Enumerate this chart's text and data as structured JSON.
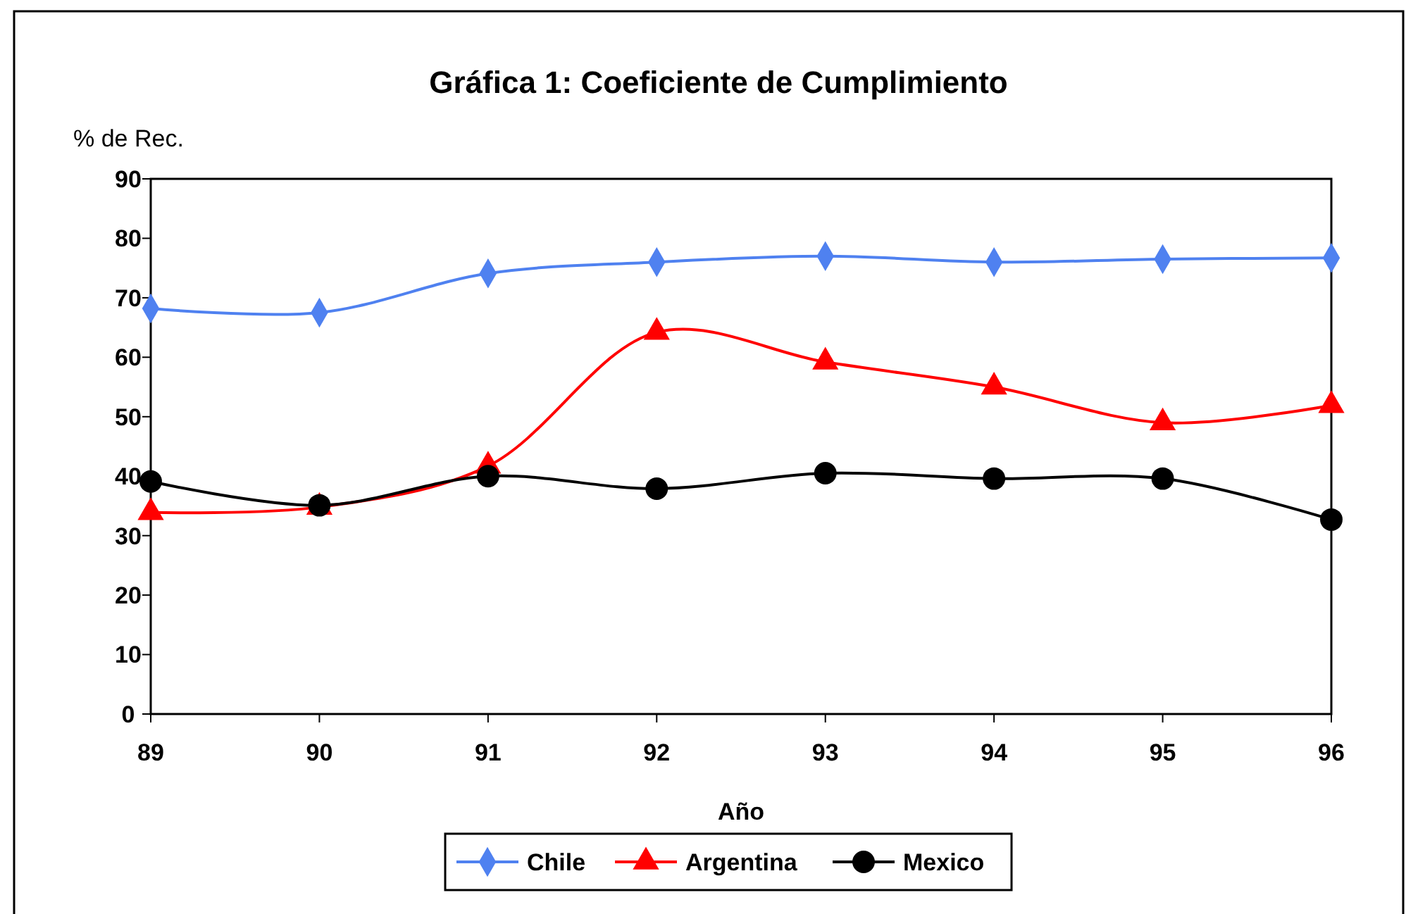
{
  "chart_data": {
    "type": "line",
    "title": "Gráfica 1: Coeficiente de Cumplimiento",
    "ylabel": "% de Rec.",
    "xlabel": "Año",
    "x": [
      89,
      90,
      91,
      92,
      93,
      94,
      95,
      96
    ],
    "xlim": [
      89,
      96
    ],
    "xticks": [
      89,
      90,
      91,
      92,
      93,
      94,
      95,
      96
    ],
    "ylim": [
      0,
      90
    ],
    "yticks": [
      0,
      10,
      20,
      30,
      40,
      50,
      60,
      70,
      80,
      90
    ],
    "series": [
      {
        "name": "Chile",
        "color": "#4f81f0",
        "marker": "diamond",
        "values": [
          68.2,
          67.5,
          74.1,
          76,
          77,
          76,
          76.5,
          76.7
        ]
      },
      {
        "name": "Argentina",
        "color": "#ff0000",
        "marker": "triangle",
        "values": [
          33.9,
          34.8,
          41.7,
          64.2,
          59.2,
          55,
          49,
          51.9
        ]
      },
      {
        "name": "Mexico",
        "color": "#000000",
        "marker": "circle",
        "values": [
          39.1,
          35.1,
          40,
          37.9,
          40.5,
          39.6,
          39.6,
          32.7
        ]
      }
    ],
    "legend": "bottom",
    "grid": false,
    "line_style": "solid"
  }
}
